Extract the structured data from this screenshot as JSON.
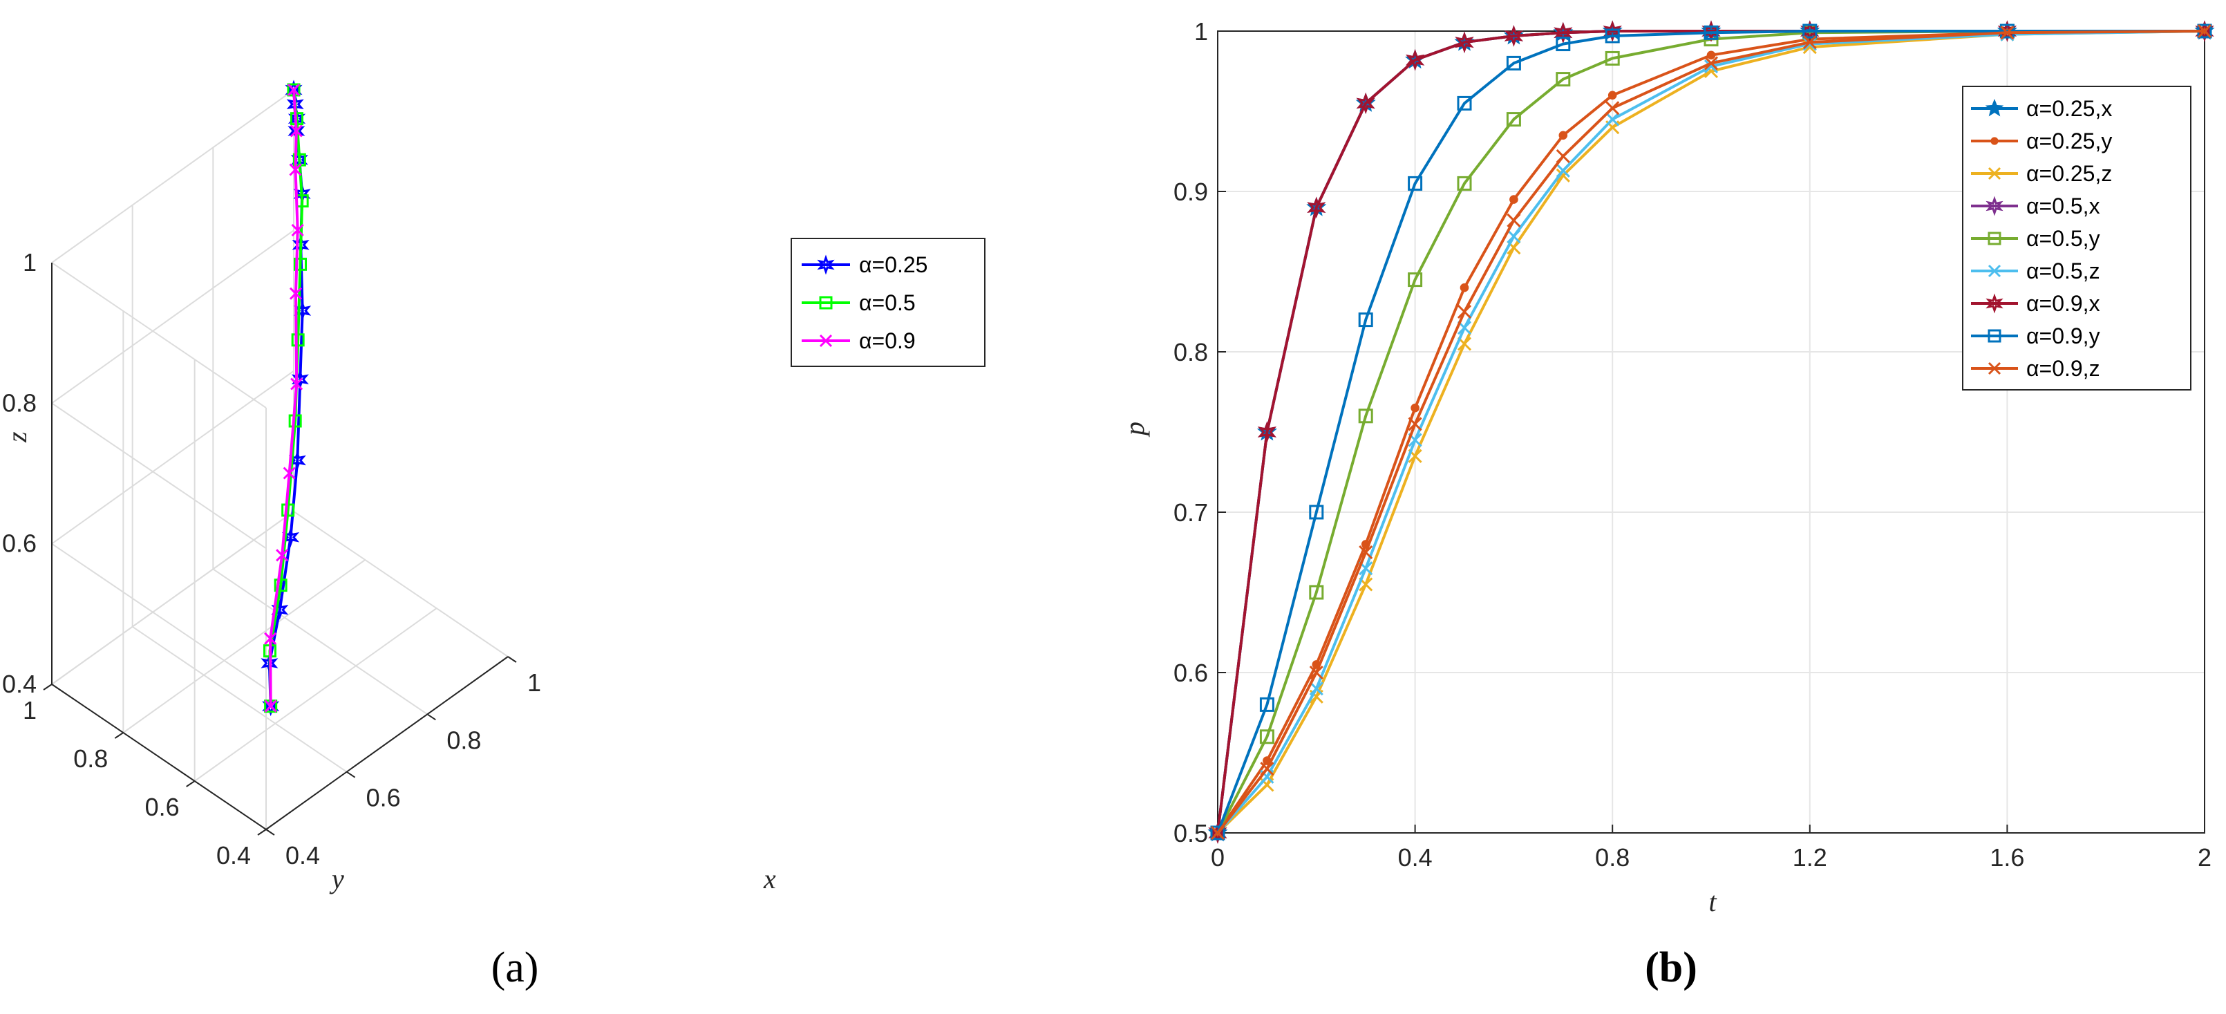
{
  "chart_data": [
    {
      "type": "line3d",
      "panel_label": "(a)",
      "xlabel": "x",
      "ylabel": "y",
      "zlabel": "z",
      "xlim": [
        0.4,
        1
      ],
      "ylim": [
        0.4,
        1
      ],
      "zlim": [
        0.4,
        1
      ],
      "xticks": [
        "0.4",
        "0.6",
        "0.8",
        "1"
      ],
      "yticks": [
        "0.4",
        "0.6",
        "0.8",
        "1"
      ],
      "zticks": [
        "0.4",
        "0.6",
        "0.8",
        "1"
      ],
      "grid": true,
      "legend_position": "right",
      "series": [
        {
          "name": "α=0.25",
          "color": "#0000ff",
          "marker": "hexagram",
          "points": [
            [
              0.5,
              0.5,
              0.5
            ],
            [
              0.55,
              0.56,
              0.52
            ],
            [
              0.62,
              0.61,
              0.55
            ],
            [
              0.7,
              0.67,
              0.6
            ],
            [
              0.77,
              0.73,
              0.66
            ],
            [
              0.83,
              0.79,
              0.73
            ],
            [
              0.88,
              0.84,
              0.79
            ],
            [
              0.92,
              0.89,
              0.85
            ],
            [
              0.95,
              0.92,
              0.9
            ],
            [
              0.97,
              0.95,
              0.93
            ],
            [
              0.98,
              0.97,
              0.96
            ],
            [
              0.99,
              0.98,
              0.97
            ],
            [
              0.995,
              0.99,
              0.985
            ],
            [
              1,
              1,
              1
            ]
          ]
        },
        {
          "name": "α=0.5",
          "color": "#00ff00",
          "marker": "square",
          "points": [
            [
              0.5,
              0.5,
              0.5
            ],
            [
              0.56,
              0.57,
              0.53
            ],
            [
              0.64,
              0.63,
              0.57
            ],
            [
              0.72,
              0.7,
              0.62
            ],
            [
              0.8,
              0.77,
              0.69
            ],
            [
              0.86,
              0.83,
              0.76
            ],
            [
              0.91,
              0.88,
              0.83
            ],
            [
              0.95,
              0.92,
              0.89
            ],
            [
              0.97,
              0.95,
              0.93
            ],
            [
              0.99,
              0.98,
              0.97
            ],
            [
              1,
              1,
              1
            ]
          ]
        },
        {
          "name": "α=0.9",
          "color": "#ff00ff",
          "marker": "x",
          "points": [
            [
              0.5,
              0.5,
              0.5
            ],
            [
              0.57,
              0.58,
              0.54
            ],
            [
              0.67,
              0.66,
              0.59
            ],
            [
              0.75,
              0.73,
              0.65
            ],
            [
              0.83,
              0.8,
              0.72
            ],
            [
              0.89,
              0.87,
              0.8
            ],
            [
              0.93,
              0.91,
              0.86
            ],
            [
              0.96,
              0.95,
              0.92
            ],
            [
              0.98,
              0.97,
              0.96
            ],
            [
              1,
              1,
              1
            ]
          ]
        }
      ]
    },
    {
      "type": "line",
      "panel_label": "(b)",
      "xlabel": "t",
      "ylabel": "p",
      "xlim": [
        0,
        2
      ],
      "ylim": [
        0.5,
        1
      ],
      "xticks": [
        "0",
        "0.4",
        "0.8",
        "1.2",
        "1.6",
        "2"
      ],
      "yticks": [
        "0.5",
        "0.6",
        "0.7",
        "0.8",
        "0.9",
        "1"
      ],
      "grid": true,
      "legend_position": "top-right",
      "series": [
        {
          "name": "α=0.25,x",
          "color": "#0072bd",
          "marker": "star",
          "x": [
            0,
            0.1,
            0.2,
            0.3,
            0.4,
            0.5,
            0.6,
            0.7,
            0.8,
            1.0,
            1.2,
            1.6,
            2.0
          ],
          "y": [
            0.5,
            0.75,
            0.89,
            0.955,
            0.982,
            0.993,
            0.997,
            0.999,
            1,
            1,
            1,
            1,
            1
          ]
        },
        {
          "name": "α=0.25,y",
          "color": "#d95319",
          "marker": "point",
          "x": [
            0,
            0.1,
            0.2,
            0.3,
            0.4,
            0.5,
            0.6,
            0.7,
            0.8,
            1.0,
            1.2,
            1.6,
            2.0
          ],
          "y": [
            0.5,
            0.545,
            0.605,
            0.68,
            0.765,
            0.84,
            0.895,
            0.935,
            0.96,
            0.985,
            0.995,
            0.999,
            1
          ]
        },
        {
          "name": "α=0.25,z",
          "color": "#edb120",
          "marker": "x",
          "x": [
            0,
            0.1,
            0.2,
            0.3,
            0.4,
            0.5,
            0.6,
            0.7,
            0.8,
            1.0,
            1.2,
            1.6,
            2.0
          ],
          "y": [
            0.5,
            0.53,
            0.585,
            0.655,
            0.735,
            0.805,
            0.865,
            0.91,
            0.94,
            0.975,
            0.99,
            0.998,
            1
          ]
        },
        {
          "name": "α=0.5,x",
          "color": "#7e2f8e",
          "marker": "hexagram",
          "x": [
            0,
            0.1,
            0.2,
            0.3,
            0.4,
            0.5,
            0.6,
            0.7,
            0.8,
            1.0,
            1.2,
            1.6,
            2.0
          ],
          "y": [
            0.5,
            0.75,
            0.89,
            0.955,
            0.982,
            0.993,
            0.997,
            0.999,
            1,
            1,
            1,
            1,
            1
          ]
        },
        {
          "name": "α=0.5,y",
          "color": "#77ac30",
          "marker": "square",
          "x": [
            0,
            0.1,
            0.2,
            0.3,
            0.4,
            0.5,
            0.6,
            0.7,
            0.8,
            1.0,
            1.2,
            1.6,
            2.0
          ],
          "y": [
            0.5,
            0.56,
            0.65,
            0.76,
            0.845,
            0.905,
            0.945,
            0.97,
            0.983,
            0.995,
            0.999,
            1,
            1
          ]
        },
        {
          "name": "α=0.5,z",
          "color": "#4dbeee",
          "marker": "x",
          "x": [
            0,
            0.1,
            0.2,
            0.3,
            0.4,
            0.5,
            0.6,
            0.7,
            0.8,
            1.0,
            1.2,
            1.6,
            2.0
          ],
          "y": [
            0.5,
            0.535,
            0.59,
            0.665,
            0.745,
            0.815,
            0.872,
            0.913,
            0.945,
            0.978,
            0.992,
            0.998,
            1
          ]
        },
        {
          "name": "α=0.9,x",
          "color": "#a2142f",
          "marker": "hexagram",
          "x": [
            0,
            0.1,
            0.2,
            0.3,
            0.4,
            0.5,
            0.6,
            0.7,
            0.8,
            1.0,
            1.2,
            1.6,
            2.0
          ],
          "y": [
            0.5,
            0.75,
            0.89,
            0.955,
            0.982,
            0.993,
            0.997,
            0.999,
            1,
            1,
            1,
            1,
            1
          ]
        },
        {
          "name": "α=0.9,y",
          "color": "#0072bd",
          "marker": "square",
          "x": [
            0,
            0.1,
            0.2,
            0.3,
            0.4,
            0.5,
            0.6,
            0.7,
            0.8,
            1.0,
            1.2,
            1.6,
            2.0
          ],
          "y": [
            0.5,
            0.58,
            0.7,
            0.82,
            0.905,
            0.955,
            0.98,
            0.992,
            0.997,
            0.999,
            1,
            1,
            1
          ]
        },
        {
          "name": "α=0.9,z",
          "color": "#d95319",
          "marker": "x",
          "x": [
            0,
            0.1,
            0.2,
            0.3,
            0.4,
            0.5,
            0.6,
            0.7,
            0.8,
            1.0,
            1.2,
            1.6,
            2.0
          ],
          "y": [
            0.5,
            0.54,
            0.6,
            0.675,
            0.755,
            0.825,
            0.882,
            0.922,
            0.952,
            0.98,
            0.993,
            0.999,
            1
          ]
        }
      ]
    }
  ]
}
